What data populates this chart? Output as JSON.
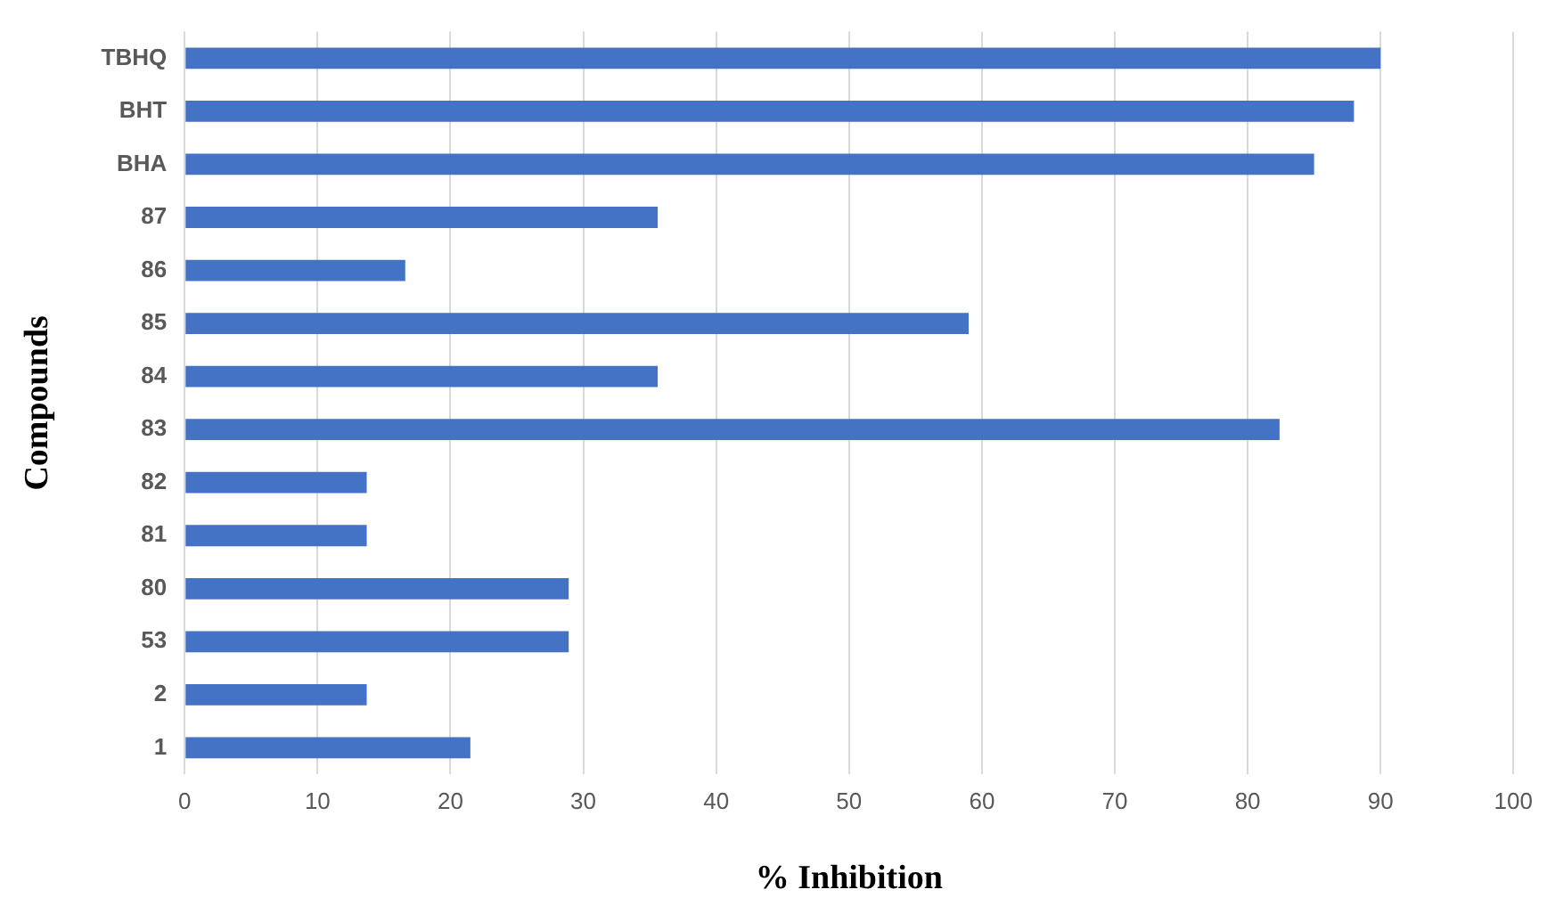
{
  "chart_data": {
    "type": "bar",
    "orientation": "horizontal",
    "xlabel": "% Inhibition",
    "ylabel": "Compounds",
    "categories": [
      "TBHQ",
      "BHT",
      "BHA",
      "87",
      "86",
      "85",
      "84",
      "83",
      "82",
      "81",
      "80",
      "53",
      "2",
      "1"
    ],
    "values": [
      90,
      88,
      85,
      35.6,
      16.6,
      59,
      35.6,
      82.4,
      13.7,
      13.7,
      28.9,
      28.9,
      13.7,
      21.5
    ],
    "color": "#4472c4",
    "xlim": [
      0,
      100
    ],
    "xticks": [
      0,
      10,
      20,
      30,
      40,
      50,
      60,
      70,
      80,
      90,
      100
    ],
    "grid": "x",
    "legend": false
  }
}
